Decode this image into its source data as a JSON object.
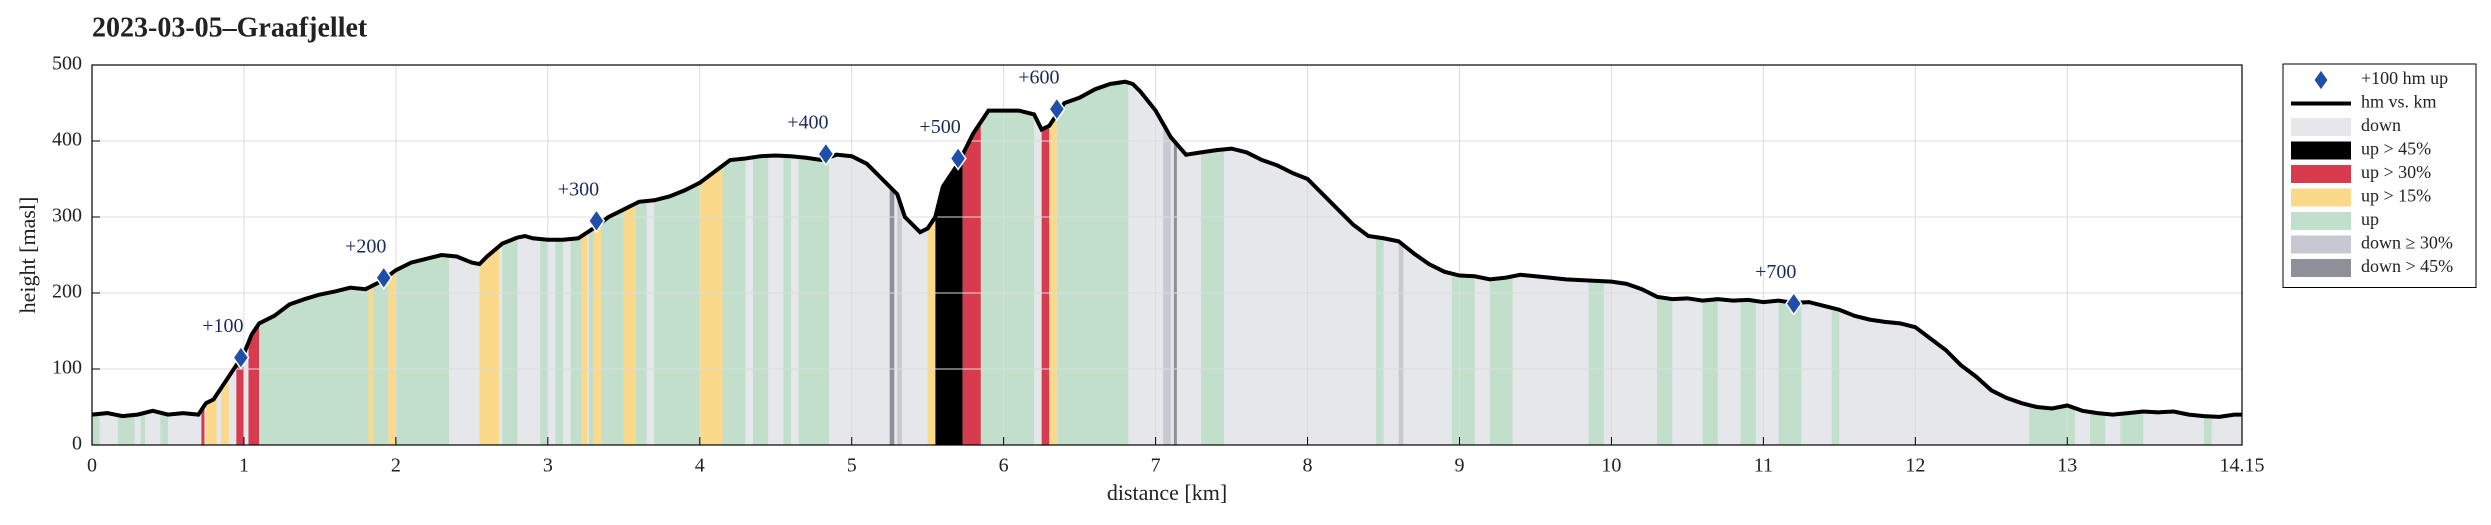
{
  "chart_data": {
    "type": "elevation-profile",
    "title": "2023-03-05–Graafjellet",
    "x_label": "distance [km]",
    "y_label": "height [masl]",
    "xlim": [
      0,
      14.15
    ],
    "xticks": [
      0,
      1,
      2,
      3,
      4,
      5,
      6,
      7,
      8,
      9,
      10,
      11,
      12,
      13,
      14.15
    ],
    "ylim": [
      0,
      500
    ],
    "yticks": [
      0,
      100,
      200,
      300,
      400,
      500
    ],
    "grid": true,
    "legend": "outside-right",
    "series": [
      {
        "name": "+100 hm up",
        "type": "marker",
        "color": "#1f4fa8",
        "x": [
          0.98,
          1.92,
          3.32,
          4.83,
          5.7,
          6.35,
          11.2
        ],
        "values": [
          115,
          220,
          295,
          383,
          377,
          442,
          186
        ],
        "labels": [
          "+100",
          "+200",
          "+300",
          "+400",
          "+500",
          "+600",
          "+700"
        ]
      },
      {
        "name": "hm vs. km",
        "type": "line",
        "color": "#000000",
        "x": [
          0,
          0.1,
          0.2,
          0.3,
          0.4,
          0.5,
          0.6,
          0.7,
          0.75,
          0.8,
          0.85,
          0.9,
          0.95,
          1.0,
          1.05,
          1.1,
          1.2,
          1.3,
          1.4,
          1.5,
          1.6,
          1.7,
          1.8,
          1.9,
          2.0,
          2.1,
          2.2,
          2.3,
          2.4,
          2.5,
          2.55,
          2.6,
          2.7,
          2.8,
          2.85,
          2.9,
          3.0,
          3.1,
          3.2,
          3.3,
          3.4,
          3.5,
          3.6,
          3.7,
          3.8,
          3.9,
          4.0,
          4.1,
          4.2,
          4.3,
          4.4,
          4.5,
          4.6,
          4.7,
          4.8,
          4.9,
          5.0,
          5.1,
          5.2,
          5.3,
          5.35,
          5.45,
          5.5,
          5.55,
          5.6,
          5.7,
          5.8,
          5.9,
          6.0,
          6.1,
          6.2,
          6.25,
          6.3,
          6.4,
          6.5,
          6.6,
          6.7,
          6.8,
          6.85,
          6.9,
          7.0,
          7.1,
          7.2,
          7.3,
          7.4,
          7.5,
          7.6,
          7.7,
          7.8,
          7.9,
          8.0,
          8.1,
          8.2,
          8.3,
          8.4,
          8.5,
          8.6,
          8.7,
          8.8,
          8.9,
          9.0,
          9.1,
          9.2,
          9.3,
          9.4,
          9.5,
          9.6,
          9.7,
          9.8,
          9.9,
          10.0,
          10.1,
          10.2,
          10.3,
          10.4,
          10.5,
          10.6,
          10.7,
          10.8,
          10.9,
          11.0,
          11.1,
          11.2,
          11.3,
          11.4,
          11.5,
          11.6,
          11.7,
          11.8,
          11.9,
          12.0,
          12.1,
          12.2,
          12.3,
          12.4,
          12.5,
          12.6,
          12.7,
          12.8,
          12.9,
          13.0,
          13.1,
          13.2,
          13.3,
          13.4,
          13.5,
          13.6,
          13.7,
          13.8,
          13.9,
          14.0,
          14.1,
          14.15
        ],
        "values": [
          40,
          42,
          38,
          40,
          45,
          40,
          42,
          40,
          55,
          60,
          75,
          90,
          105,
          120,
          145,
          160,
          170,
          185,
          192,
          198,
          202,
          207,
          205,
          215,
          230,
          240,
          245,
          250,
          248,
          240,
          238,
          248,
          265,
          273,
          275,
          272,
          270,
          270,
          272,
          285,
          300,
          310,
          320,
          322,
          327,
          335,
          345,
          360,
          375,
          377,
          380,
          381,
          380,
          378,
          375,
          382,
          380,
          370,
          350,
          330,
          300,
          280,
          285,
          300,
          340,
          370,
          410,
          440,
          440,
          440,
          435,
          415,
          420,
          450,
          457,
          468,
          475,
          478,
          475,
          465,
          440,
          405,
          382,
          385,
          388,
          390,
          385,
          375,
          368,
          358,
          350,
          330,
          310,
          290,
          275,
          272,
          268,
          252,
          238,
          228,
          223,
          222,
          218,
          220,
          224,
          222,
          220,
          218,
          217,
          216,
          215,
          212,
          205,
          195,
          192,
          193,
          190,
          192,
          190,
          191,
          188,
          190,
          187,
          188,
          183,
          178,
          170,
          165,
          162,
          160,
          155,
          140,
          125,
          105,
          90,
          72,
          62,
          55,
          50,
          48,
          52,
          45,
          42,
          40,
          42,
          44,
          43,
          44,
          40,
          38,
          37,
          40,
          40
        ]
      }
    ],
    "bands": [
      {
        "name": "down",
        "color": "#e6e7eb",
        "spans": [
          [
            0,
            14.15
          ]
        ]
      },
      {
        "name": "up > 45%",
        "color": "#000000",
        "spans": [
          [
            5.55,
            5.73
          ]
        ]
      },
      {
        "name": "up > 30%",
        "color": "#d63b4e",
        "spans": [
          [
            0.72,
            0.74
          ],
          [
            0.95,
            1.0
          ],
          [
            1.03,
            1.1
          ],
          [
            5.73,
            5.85
          ],
          [
            6.25,
            6.3
          ]
        ]
      },
      {
        "name": "up > 15%",
        "color": "#fbd98a",
        "spans": [
          [
            0.75,
            0.82
          ],
          [
            0.85,
            0.9
          ],
          [
            1.82,
            1.85
          ],
          [
            1.95,
            2.0
          ],
          [
            2.55,
            2.68
          ],
          [
            3.22,
            3.26
          ],
          [
            3.3,
            3.35
          ],
          [
            3.5,
            3.58
          ],
          [
            4.0,
            4.15
          ],
          [
            5.5,
            5.55
          ],
          [
            6.3,
            6.35
          ]
        ]
      },
      {
        "name": "up",
        "color": "#c2dfcb",
        "spans": [
          [
            0,
            0.05
          ],
          [
            0.17,
            0.28
          ],
          [
            0.32,
            0.35
          ],
          [
            0.45,
            0.5
          ],
          [
            1.1,
            1.82
          ],
          [
            1.85,
            1.95
          ],
          [
            2.0,
            2.35
          ],
          [
            2.7,
            2.8
          ],
          [
            2.95,
            3.0
          ],
          [
            3.05,
            3.1
          ],
          [
            3.15,
            3.22
          ],
          [
            3.27,
            3.3
          ],
          [
            3.35,
            3.5
          ],
          [
            3.58,
            3.65
          ],
          [
            3.7,
            4.0
          ],
          [
            4.15,
            4.3
          ],
          [
            4.35,
            4.45
          ],
          [
            4.55,
            4.6
          ],
          [
            4.65,
            4.85
          ],
          [
            5.85,
            6.2
          ],
          [
            6.35,
            6.82
          ],
          [
            7.3,
            7.45
          ],
          [
            8.45,
            8.5
          ],
          [
            8.95,
            9.1
          ],
          [
            9.2,
            9.35
          ],
          [
            9.85,
            9.95
          ],
          [
            10.3,
            10.4
          ],
          [
            10.6,
            10.7
          ],
          [
            10.85,
            10.95
          ],
          [
            11.1,
            11.25
          ],
          [
            11.45,
            11.5
          ],
          [
            12.75,
            13.05
          ],
          [
            13.15,
            13.25
          ],
          [
            13.35,
            13.5
          ],
          [
            13.9,
            13.95
          ]
        ]
      },
      {
        "name": "down ≥ 30%",
        "color": "#c8c9d0",
        "spans": [
          [
            5.3,
            5.33
          ],
          [
            7.05,
            7.1
          ],
          [
            8.6,
            8.63
          ]
        ]
      },
      {
        "name": "down > 45%",
        "color": "#8e9099",
        "spans": [
          [
            5.25,
            5.28
          ],
          [
            7.12,
            7.14
          ]
        ]
      }
    ]
  }
}
